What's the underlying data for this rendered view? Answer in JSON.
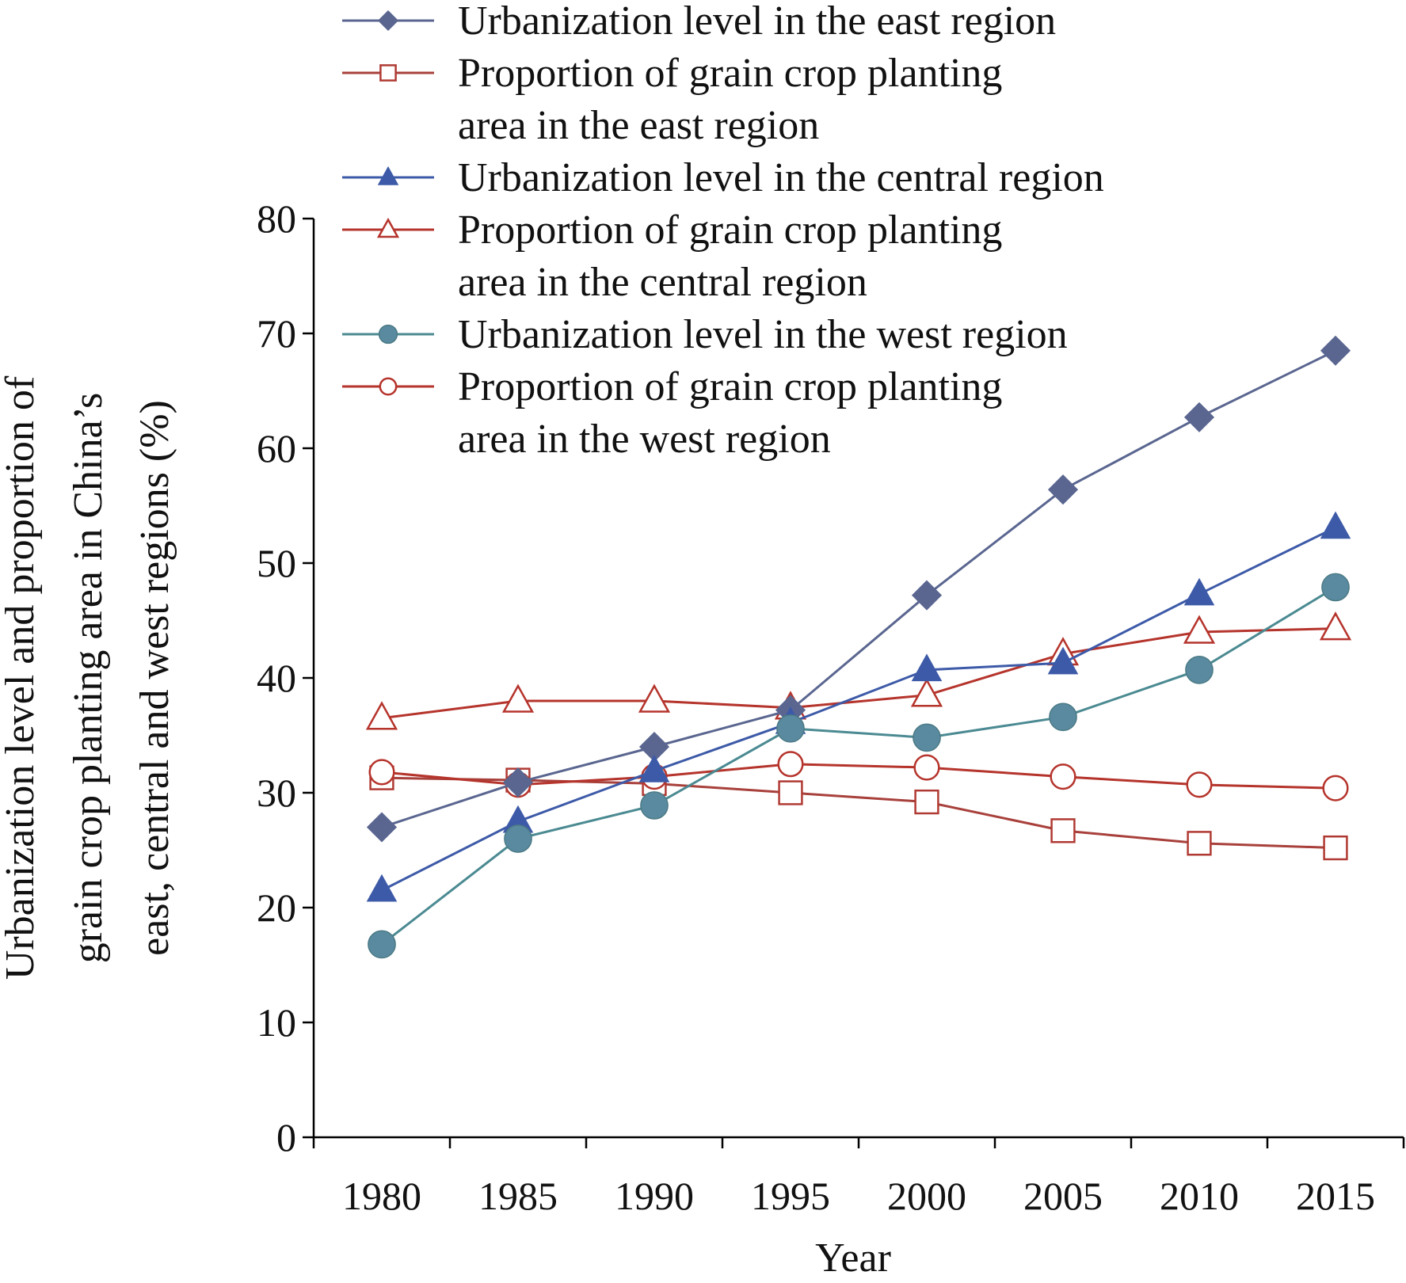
{
  "chart_data": {
    "type": "line",
    "xlabel": "Year",
    "ylabel_lines": [
      "Urbanization level and proportion of",
      "grain crop planting area in China’s",
      "east, central and west regions (%)"
    ],
    "ylim": [
      0,
      80
    ],
    "yticks": [
      "0",
      "10",
      "20",
      "30",
      "40",
      "50",
      "60",
      "70",
      "80"
    ],
    "categories": [
      "1980",
      "1985",
      "1990",
      "1995",
      "2000",
      "2005",
      "2010",
      "2015"
    ],
    "grid": false,
    "legend_position": "top",
    "series": [
      {
        "key": "urban-east",
        "name_lines": [
          "Urbanization level in the east region"
        ],
        "marker": "diamond-filled",
        "line_color": "#5a6690",
        "marker_color": "#5a6690",
        "values": [
          27.0,
          30.9,
          34.0,
          37.2,
          47.2,
          56.4,
          62.7,
          68.5
        ]
      },
      {
        "key": "grain-east",
        "name_lines": [
          "Proportion of grain crop planting",
          "area in the east region"
        ],
        "marker": "square-open",
        "line_color": "#a8403b",
        "marker_color": "#b03a33",
        "values": [
          31.3,
          31.1,
          30.8,
          30.0,
          29.2,
          26.7,
          25.6,
          25.2
        ]
      },
      {
        "key": "urban-central",
        "name_lines": [
          "Urbanization level in the central region"
        ],
        "marker": "triangle-filled",
        "line_color": "#3d5aa8",
        "marker_color": "#3d5aa8",
        "values": [
          21.5,
          27.5,
          31.9,
          36.1,
          40.7,
          41.3,
          47.3,
          53.1
        ]
      },
      {
        "key": "grain-central",
        "name_lines": [
          "Proportion of grain crop planting",
          "area in the central region"
        ],
        "marker": "triangle-open",
        "line_color": "#b5342c",
        "marker_color": "#b5342c",
        "values": [
          36.5,
          38.0,
          38.0,
          37.4,
          38.5,
          42.1,
          44.0,
          44.3
        ]
      },
      {
        "key": "urban-west",
        "name_lines": [
          "Urbanization level in the west region"
        ],
        "marker": "circle-filled",
        "line_color": "#4b8a92",
        "marker_color": "#5a8aa0",
        "values": [
          16.8,
          26.0,
          28.9,
          35.6,
          34.8,
          36.6,
          40.7,
          47.9
        ]
      },
      {
        "key": "grain-west",
        "name_lines": [
          "Proportion of grain crop planting",
          "area in the west region"
        ],
        "marker": "circle-open",
        "line_color": "#b5342c",
        "marker_color": "#b5342c",
        "values": [
          31.8,
          30.7,
          31.4,
          32.5,
          32.2,
          31.4,
          30.7,
          30.4
        ]
      }
    ]
  }
}
